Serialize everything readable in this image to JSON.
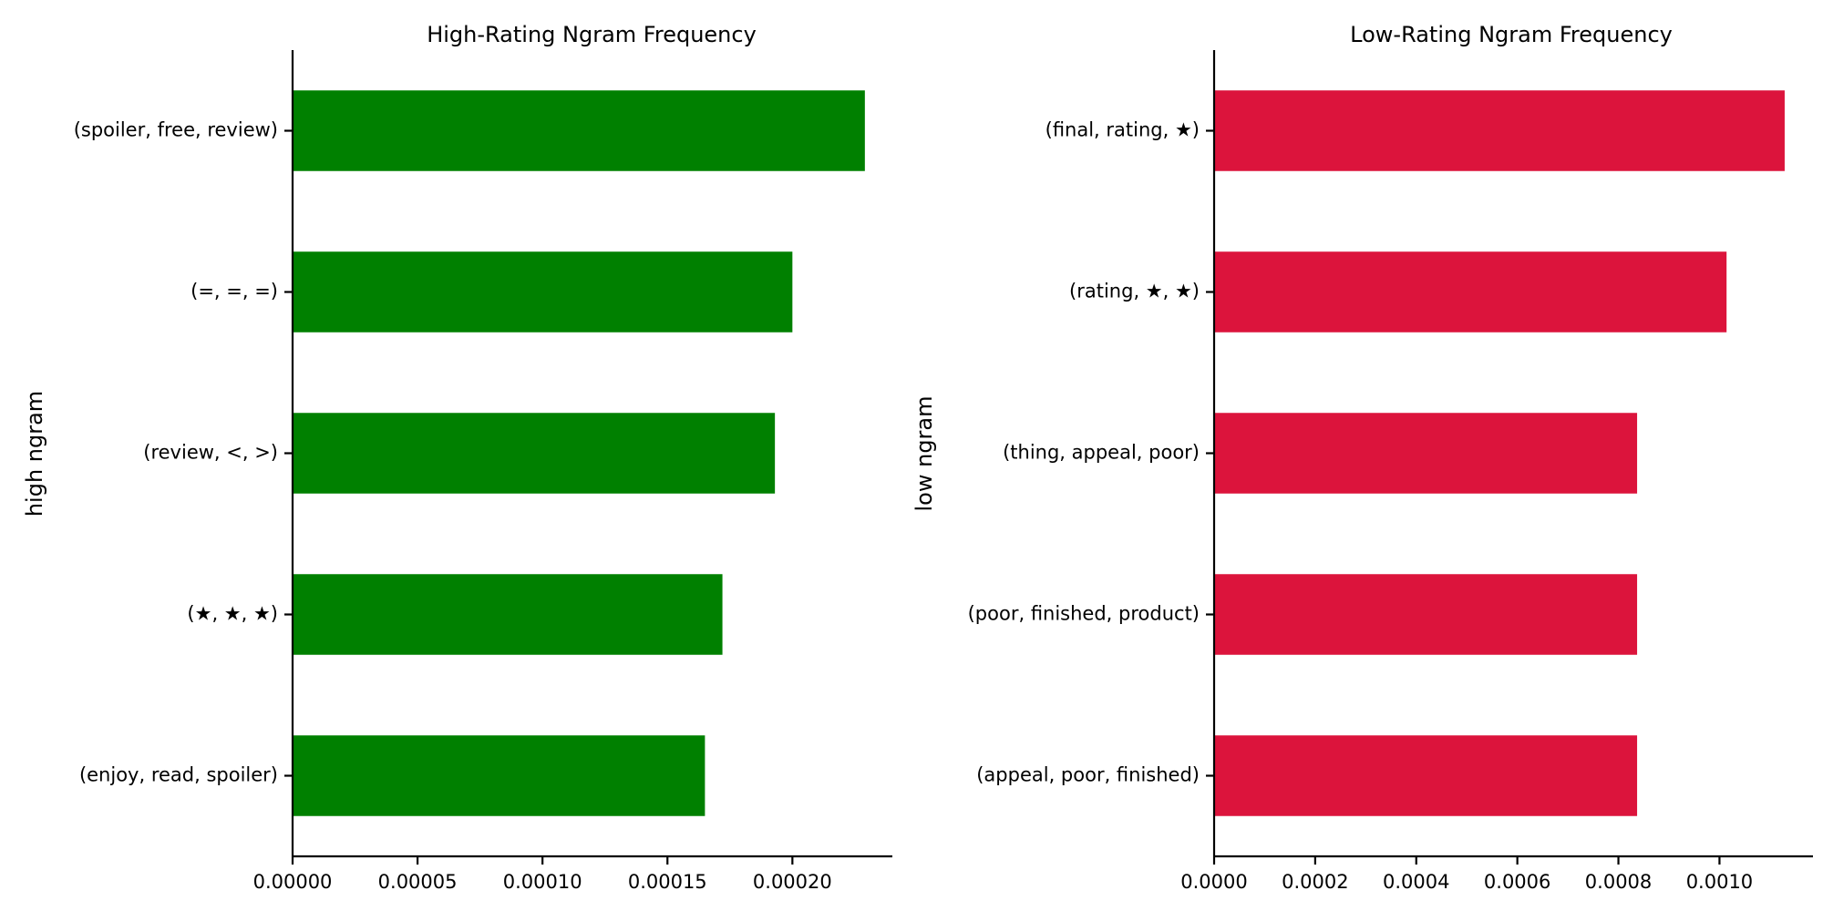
{
  "chart_data": [
    {
      "type": "bar",
      "orientation": "horizontal",
      "title": "High-Rating Ngram Frequency",
      "ylabel": "high ngram",
      "xlabel": "",
      "color": "#008000",
      "categories": [
        "(spoiler, free, review)",
        "(=, =, =)",
        "(review, <, >)",
        "(★, ★, ★)",
        "(enjoy, read, spoiler)"
      ],
      "values": [
        0.000229,
        0.0002,
        0.000193,
        0.000172,
        0.000165
      ],
      "xlim": [
        0,
        0.00024
      ],
      "xticks": [
        0,
        5e-05,
        0.0001,
        0.00015,
        0.0002
      ],
      "xtick_labels": [
        "0.00000",
        "0.00005",
        "0.00010",
        "0.00015",
        "0.00020"
      ],
      "grid": false
    },
    {
      "type": "bar",
      "orientation": "horizontal",
      "title": "Low-Rating Ngram Frequency",
      "ylabel": "low ngram",
      "xlabel": "",
      "color": "#DC143C",
      "categories": [
        "(final, rating, ★)",
        "(rating, ★, ★)",
        "(thing, appeal, poor)",
        "(poor, finished, product)",
        "(appeal, poor, finished)"
      ],
      "values": [
        0.001129,
        0.001014,
        0.000837,
        0.000837,
        0.000837
      ],
      "xlim": [
        0,
        0.001185
      ],
      "xticks": [
        0,
        0.0002,
        0.0004,
        0.0006,
        0.0008,
        0.001
      ],
      "xtick_labels": [
        "0.0000",
        "0.0002",
        "0.0004",
        "0.0006",
        "0.0008",
        "0.0010"
      ],
      "grid": false
    }
  ]
}
